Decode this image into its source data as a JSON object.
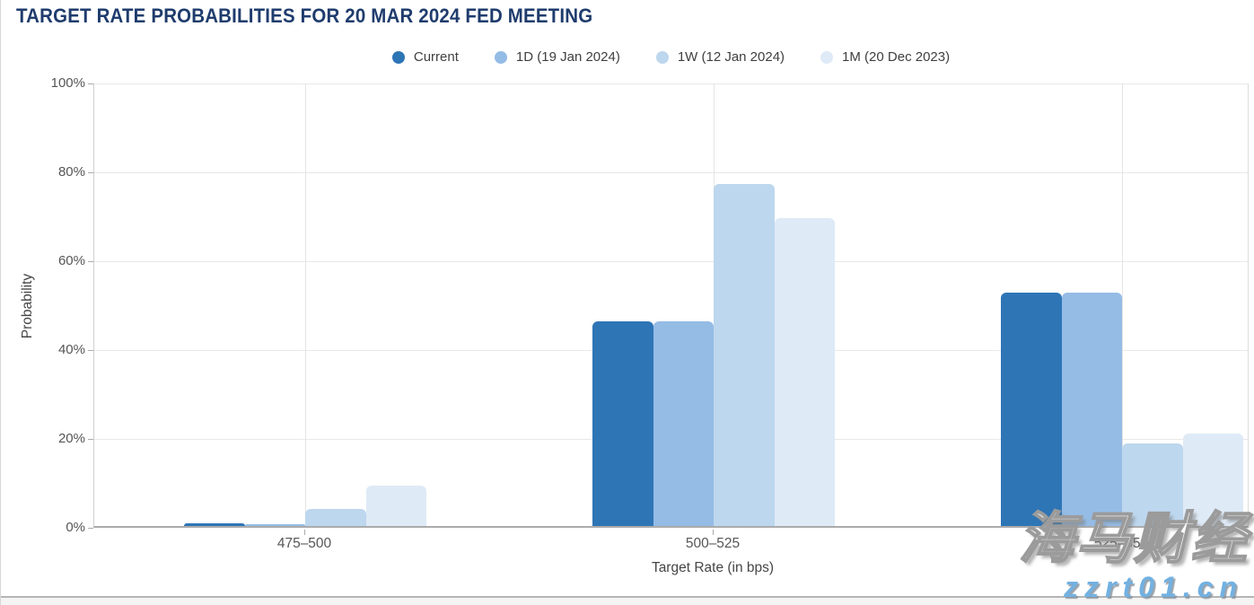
{
  "page": {
    "title": "TARGET RATE PROBABILITIES FOR 20 MAR 2024 FED MEETING"
  },
  "chart_data": {
    "type": "bar",
    "title": "TARGET RATE PROBABILITIES FOR 20 MAR 2024 FED MEETING",
    "xlabel": "Target Rate (in bps)",
    "ylabel": "Probability",
    "ylim": [
      0,
      100
    ],
    "yticks": [
      0,
      20,
      40,
      60,
      80,
      100
    ],
    "ytick_labels": [
      "0%",
      "20%",
      "40%",
      "60%",
      "80%",
      "100%"
    ],
    "categories": [
      "475–500",
      "500–525",
      "525–550"
    ],
    "series": [
      {
        "name": "Current",
        "color": "#2e75b6",
        "values": [
          0.7,
          46.0,
          52.6
        ]
      },
      {
        "name": "1D (19 Jan 2024)",
        "color": "#95bce5",
        "values": [
          0.5,
          46.0,
          52.6
        ]
      },
      {
        "name": "1W (12 Jan 2024)",
        "color": "#bdd7ee",
        "values": [
          3.9,
          76.9,
          18.6
        ]
      },
      {
        "name": "1M (20 Dec 2023)",
        "color": "#deeaf6",
        "values": [
          9.1,
          69.3,
          20.8
        ]
      }
    ],
    "grid": true,
    "legend_position": "top"
  },
  "watermark": {
    "line1": "海马财经",
    "line2": "zzrt01.cn",
    "color": "#72b1e1"
  }
}
